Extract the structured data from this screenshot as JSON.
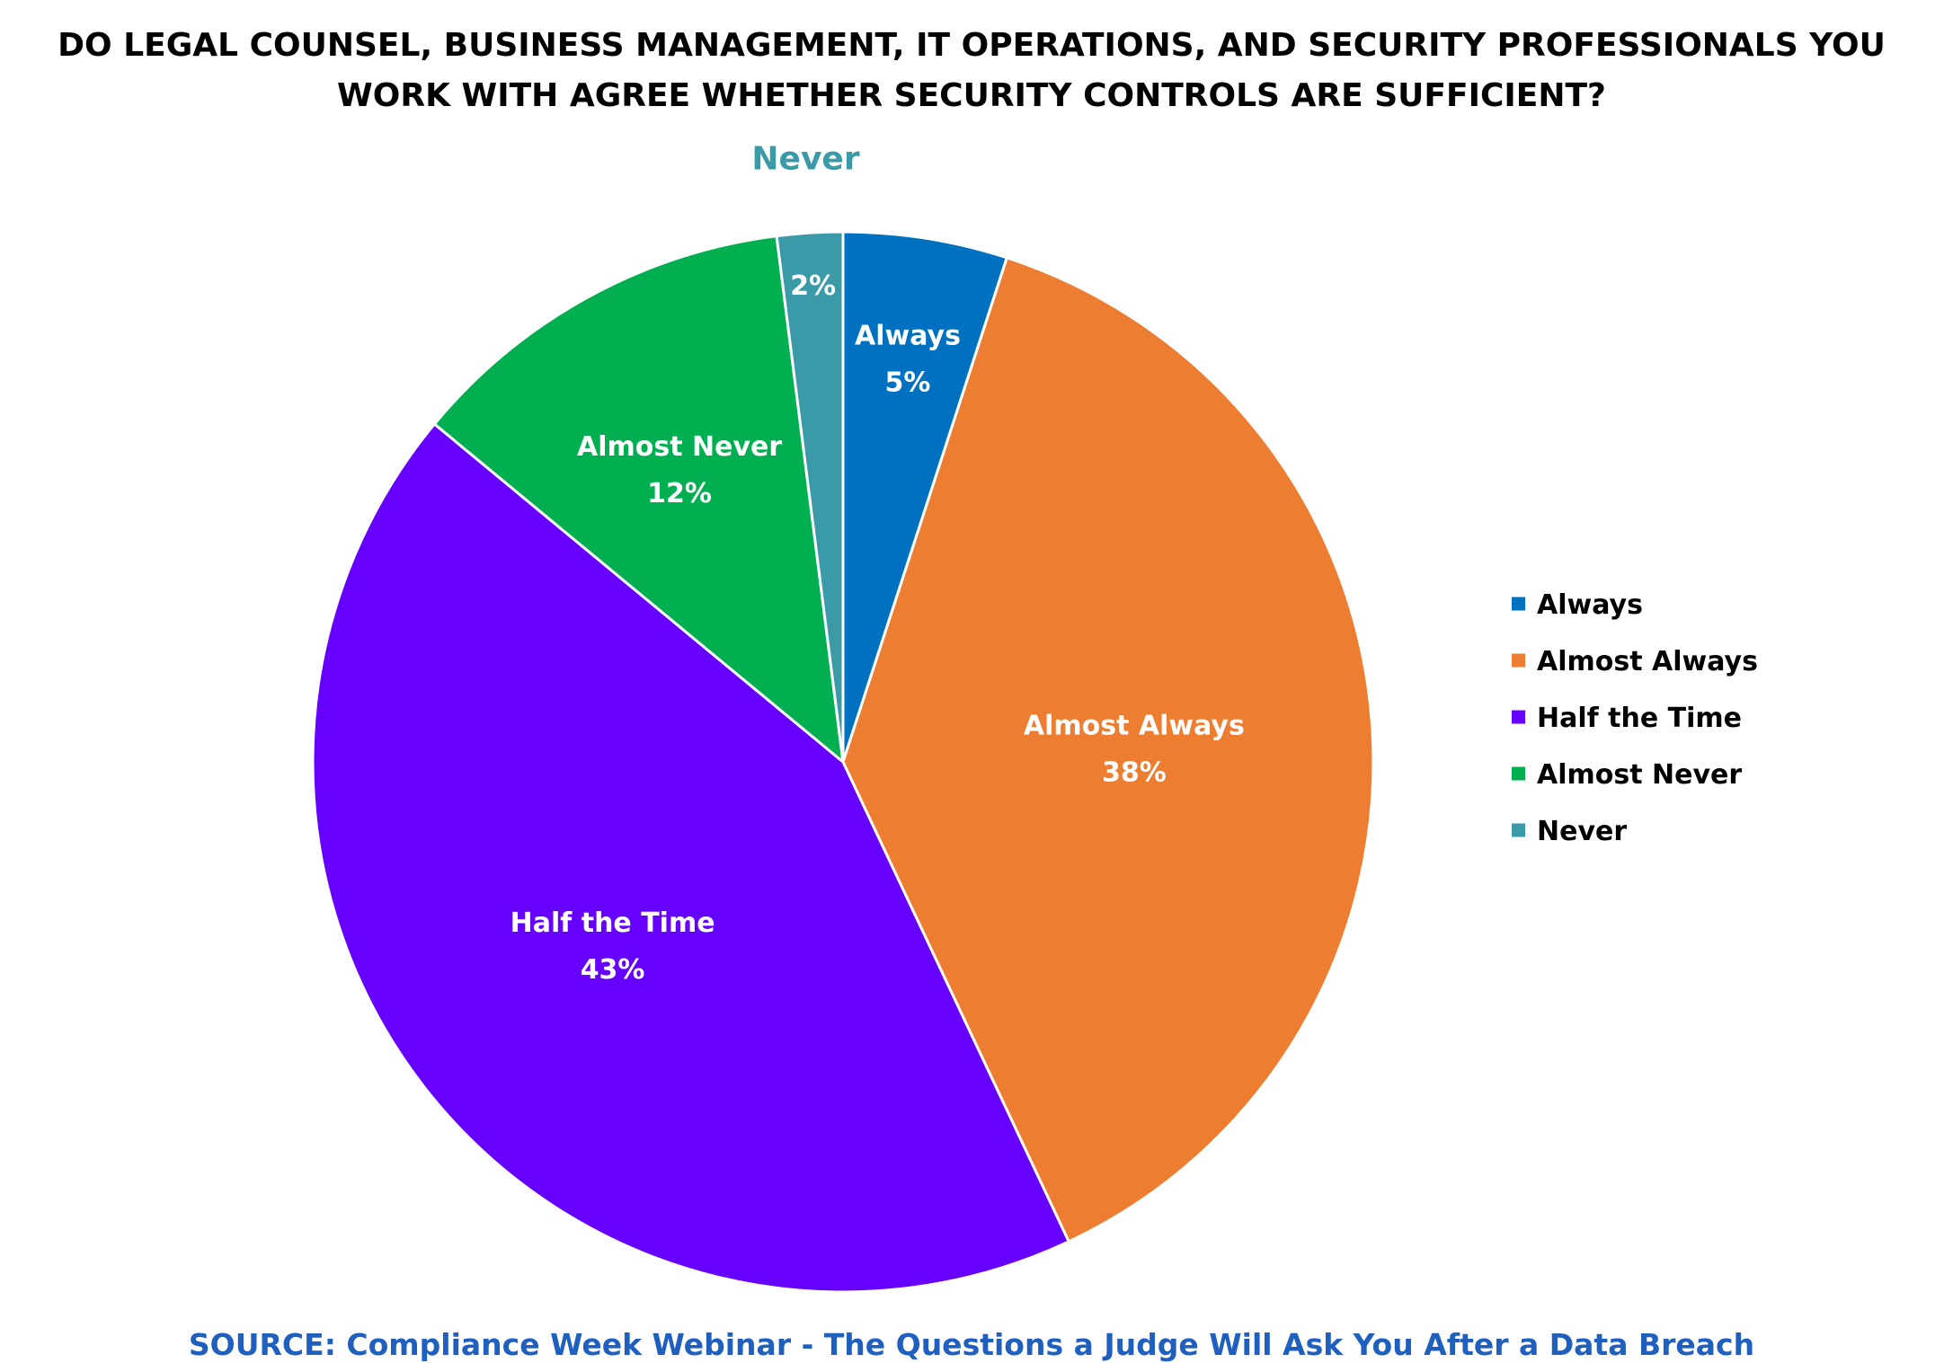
{
  "chart_data": {
    "type": "pie",
    "title_lines": [
      "DO LEGAL COUNSEL, BUSINESS MANAGEMENT, IT OPERATIONS, AND SECURITY PROFESSIONALS YOU",
      "WORK WITH AGREE WHETHER SECURITY CONTROLS ARE SUFFICIENT?"
    ],
    "categories": [
      "Always",
      "Almost Always",
      "Half the Time",
      "Almost Never",
      "Never"
    ],
    "values": [
      5,
      38,
      43,
      12,
      2
    ],
    "value_labels": [
      "5%",
      "38%",
      "43%",
      "12%",
      "2%"
    ],
    "colors": [
      "#0070c0",
      "#ed7d31",
      "#6600ff",
      "#00b050",
      "#3b9aa8"
    ],
    "start_angle": "12 o'clock",
    "direction": "clockwise",
    "legend_position": "right",
    "source": "SOURCE: Compliance Week Webinar - The Questions a Judge Will Ask You After a Data Breach",
    "source_color": "#1f5fbf",
    "outside_label_color": "#3b9aa8"
  }
}
